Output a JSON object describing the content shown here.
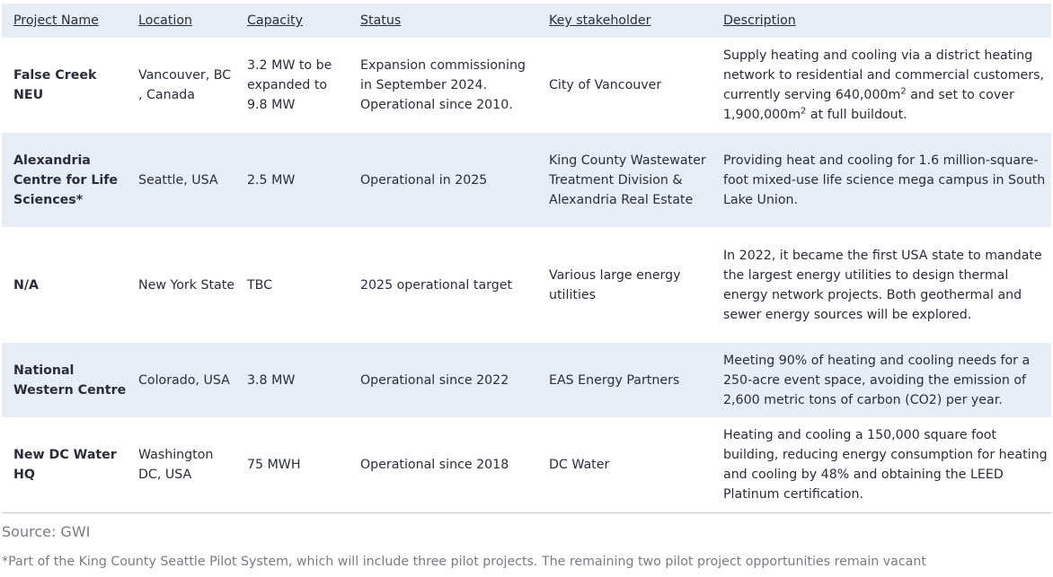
{
  "headers": [
    "Project Name",
    "Location",
    "Capacity",
    "Status ",
    "Key stakeholder",
    "Description "
  ],
  "rows": [
    {
      "name": "False Creek NEU",
      "location": "Vancouver, BC , Canada",
      "capacity": "3.2 MW to be expanded to 9.8 MW",
      "status": "Expansion commissioning in September 2024. Operational since 2010.",
      "stakeholder": "City of Vancouver",
      "description_parts": [
        "Supply heating and cooling via a district heating network to residential and commercial customers, currently serving 640,000m",
        "2",
        " and set to cover 1,900,000m",
        "2",
        " at full buildout."
      ]
    },
    {
      "name": "Alexandria Centre for Life Sciences*",
      "location": "Seattle, USA",
      "capacity": "2.5 MW",
      "status": "Operational in 2025",
      "stakeholder": "King County Wastewater Treatment Division &  Alexandria Real Estate",
      "description": "Providing heat and cooling for 1.6 million-square-foot mixed-use life science mega campus in South Lake Union."
    },
    {
      "name": "N/A",
      "location": "New York State",
      "capacity": "TBC",
      "status": "2025 operational target",
      "stakeholder": "Various large energy utilities",
      "description": "In 2022, it became the first USA state to mandate the largest energy utilities to design thermal energy network projects. Both geothermal and sewer energy sources will be explored."
    },
    {
      "name": "National Western Centre",
      "location": "Colorado, USA",
      "capacity": "3.8 MW",
      "status": "Operational since 2022",
      "stakeholder": "EAS Energy Partners",
      "description": "Meeting 90% of heating and cooling needs for a 250-acre event space, avoiding the emission of 2,600 metric tons of carbon (CO2) per year."
    },
    {
      "name": "New DC Water HQ",
      "location": "Washington DC, USA",
      "capacity": "75 MWH",
      "status": "Operational since 2018",
      "stakeholder": "DC Water",
      "description": "Heating and cooling a 150,000 square foot building, reducing energy consumption for heating and cooling by 48% and obtaining the LEED Platinum certification."
    }
  ],
  "source": "Source: GWI",
  "footnote": "*Part of the King County Seattle Pilot System, which will include three pilot projects. The remaining two pilot project opportunities remain vacant"
}
